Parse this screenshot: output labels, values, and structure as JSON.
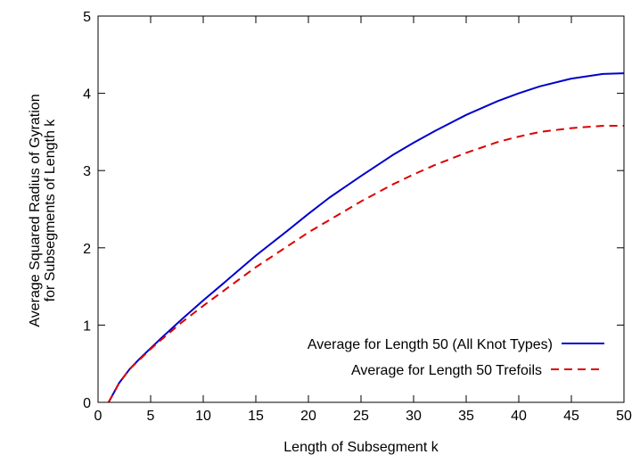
{
  "chart_data": {
    "type": "line",
    "title": "",
    "xlabel": "Length of Subsegment k",
    "ylabel_line1": "Average Squared Radius of Gyration",
    "ylabel_line2": "for Subsegments of Length k",
    "xlim": [
      0,
      50
    ],
    "ylim": [
      0,
      5
    ],
    "xticks": [
      0,
      5,
      10,
      15,
      20,
      25,
      30,
      35,
      40,
      45,
      50
    ],
    "yticks": [
      0,
      1,
      2,
      3,
      4,
      5
    ],
    "grid": false,
    "legend_position": "bottom-right",
    "x": [
      1,
      2,
      3,
      4,
      5,
      6,
      8,
      10,
      12,
      15,
      18,
      20,
      22,
      25,
      28,
      30,
      32,
      35,
      38,
      40,
      42,
      45,
      48,
      50
    ],
    "series": [
      {
        "name": "Average for Length 50 (All Knot Types)",
        "color": "#0000cc",
        "dash": "solid",
        "values": [
          0.0,
          0.25,
          0.43,
          0.57,
          0.7,
          0.83,
          1.08,
          1.32,
          1.55,
          1.9,
          2.22,
          2.44,
          2.65,
          2.93,
          3.2,
          3.36,
          3.51,
          3.72,
          3.9,
          4.0,
          4.09,
          4.19,
          4.25,
          4.26
        ]
      },
      {
        "name": "Average for Length 50 Trefoils",
        "color": "#dd0000",
        "dash": "dashed",
        "values": [
          0.0,
          0.25,
          0.43,
          0.56,
          0.69,
          0.81,
          1.04,
          1.25,
          1.45,
          1.75,
          2.02,
          2.2,
          2.36,
          2.6,
          2.82,
          2.95,
          3.07,
          3.23,
          3.37,
          3.44,
          3.5,
          3.55,
          3.58,
          3.58
        ]
      }
    ]
  }
}
